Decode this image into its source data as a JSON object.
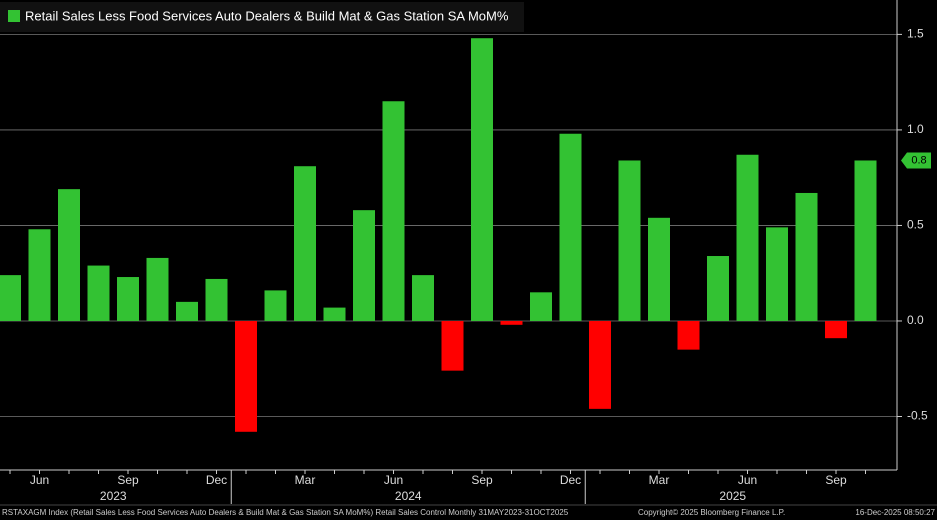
{
  "chart_data": {
    "type": "bar",
    "title": "Retail Sales Less Food Services Auto Dealers & Build Mat & Gas Station SA MoM%",
    "categories": [
      null,
      "Jun",
      null,
      null,
      "Sep",
      null,
      null,
      "Dec",
      null,
      null,
      "Mar",
      null,
      null,
      "Jun",
      null,
      null,
      "Sep",
      null,
      null,
      "Dec",
      null,
      null,
      "Mar",
      null,
      null,
      "Jun",
      null,
      null,
      "Sep",
      null
    ],
    "years": [
      "2023",
      "2024",
      "2025"
    ],
    "values": [
      0.24,
      0.48,
      0.69,
      0.29,
      0.23,
      0.33,
      0.1,
      0.22,
      -0.58,
      0.16,
      0.81,
      0.07,
      0.58,
      1.15,
      0.24,
      -0.26,
      1.48,
      -0.02,
      0.15,
      0.98,
      -0.46,
      0.84,
      0.54,
      -0.15,
      0.34,
      0.87,
      0.49,
      0.67,
      -0.09,
      0.84
    ],
    "last_value_label": "0.8",
    "positive_color": "#33c233",
    "negative_color": "#ff0000",
    "ylim": [
      -0.78,
      1.68
    ],
    "yticks": [
      -0.5,
      {
        "value": 0.0,
        "label": "0.0"
      },
      0.5,
      {
        "value": 1.0,
        "label": "1.0"
      },
      1.5
    ],
    "grid": true,
    "footer": {
      "source": "RSTAXAGM Index (Retail Sales Less Food Services Auto Dealers & Build Mat & Gas Station SA MoM%) Retail Sales Control Monthly 31MAY2023-31OCT2025",
      "copyright": "Copyright© 2025 Bloomberg Finance L.P.",
      "timestamp": "16-Dec-2025 08:50:27"
    }
  }
}
